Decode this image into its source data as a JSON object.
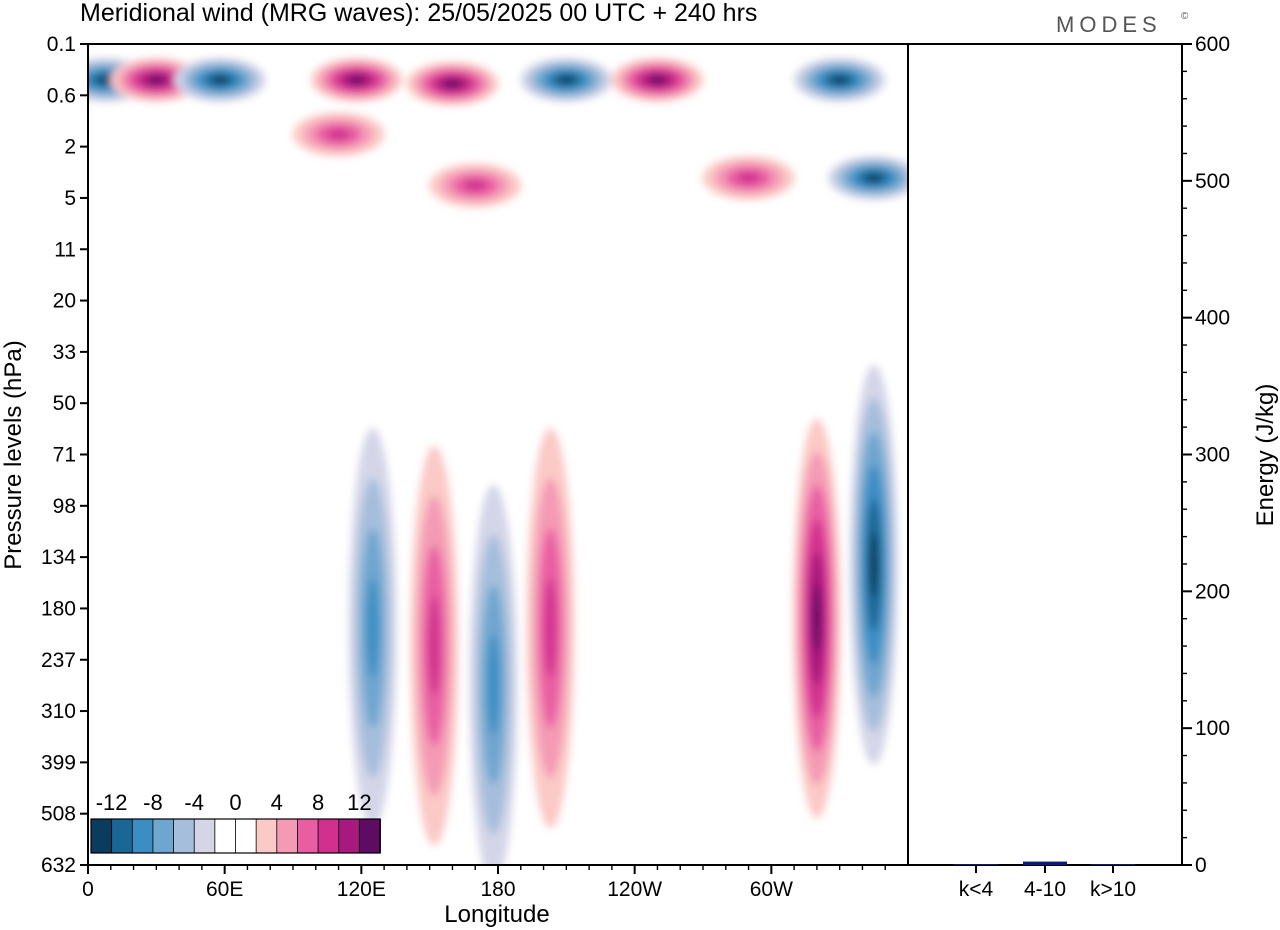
{
  "title": "Meridional wind (MRG waves):  25/05/2025  00 UTC  + 240 hrs",
  "logo": "MODES",
  "logo_mark": "©",
  "chart_data": [
    {
      "type": "heatmap",
      "title": "Meridional wind (MRG waves):  25/05/2025  00 UTC  + 240 hrs",
      "xlabel": "Longitude",
      "ylabel": "Pressure levels (hPa)",
      "x_ticks": [
        {
          "label": "0",
          "lon": 0
        },
        {
          "label": "60E",
          "lon": 60
        },
        {
          "label": "120E",
          "lon": 120
        },
        {
          "label": "180",
          "lon": 180
        },
        {
          "label": "120W",
          "lon": 240
        },
        {
          "label": "60W",
          "lon": 300
        }
      ],
      "xlim": [
        0,
        360
      ],
      "y_levels": [
        "0.1",
        "0.6",
        "2",
        "5",
        "11",
        "20",
        "33",
        "50",
        "71",
        "98",
        "134",
        "180",
        "237",
        "310",
        "399",
        "508",
        "632"
      ],
      "colorbar": {
        "labels": [
          "-12",
          "-8",
          "-4",
          "0",
          "4",
          "8",
          "12"
        ],
        "colors": [
          "#0b3c5d",
          "#1a6796",
          "#3a8ec4",
          "#6ea6cf",
          "#a5bedc",
          "#d4d6e8",
          "#ffffff",
          "#ffffff",
          "#fbc9c6",
          "#f49ab5",
          "#e95ea3",
          "#d1308f",
          "#a8187e",
          "#5e0b63"
        ]
      },
      "features": [
        {
          "lon": 8,
          "level": 0.35,
          "v": -12
        },
        {
          "lon": 30,
          "level": 0.35,
          "v": 12
        },
        {
          "lon": 58,
          "level": 0.35,
          "v": -12
        },
        {
          "lon": 118,
          "level": 0.35,
          "v": 12
        },
        {
          "lon": 160,
          "level": 0.4,
          "v": 12
        },
        {
          "lon": 210,
          "level": 0.35,
          "v": -12
        },
        {
          "lon": 250,
          "level": 0.35,
          "v": 12
        },
        {
          "lon": 330,
          "level": 0.35,
          "v": -12
        },
        {
          "lon": 345,
          "level": 3.5,
          "v": -12
        },
        {
          "lon": 290,
          "level": 3.5,
          "v": 8
        },
        {
          "lon": 170,
          "level": 4,
          "v": 8
        },
        {
          "lon": 110,
          "level": 1.5,
          "v": 8
        },
        {
          "lon": 125,
          "level": 200,
          "v": -8
        },
        {
          "lon": 152,
          "level": 220,
          "v": 8
        },
        {
          "lon": 178,
          "level": 270,
          "v": -8
        },
        {
          "lon": 203,
          "level": 200,
          "v": 8
        },
        {
          "lon": 320,
          "level": 190,
          "v": 12
        },
        {
          "lon": 345,
          "level": 140,
          "v": -12
        }
      ]
    },
    {
      "type": "bar",
      "categories": [
        "k<4",
        "4-10",
        "k>10"
      ],
      "values": [
        0.3,
        2.5,
        0.2
      ],
      "ylabel": "Energy (J/kg)",
      "ylim": [
        0,
        600
      ],
      "y_ticks": [
        0,
        100,
        200,
        300,
        400,
        500,
        600
      ],
      "bar_color": "#0b1a7a"
    }
  ]
}
